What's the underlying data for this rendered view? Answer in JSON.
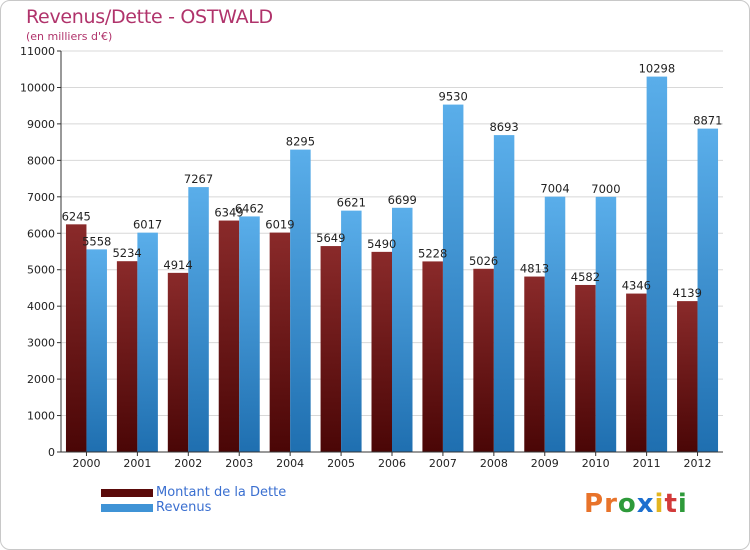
{
  "header": {
    "title": "Revenus/Dette - OSTWALD",
    "subtitle": "(en milliers d'€)"
  },
  "legend": {
    "debt_label": "Montant de la Dette",
    "revenue_label": "Revenus"
  },
  "logo": {
    "text": "Proxiti",
    "letters": [
      "P",
      "r",
      "o",
      "x",
      "i",
      "t",
      "i"
    ],
    "letter_colors": [
      "#e8732a",
      "#e8732a",
      "#2e9a3a",
      "#1c6fcf",
      "#e3b520",
      "#d23a3a",
      "#2e9a3a"
    ]
  },
  "colors": {
    "debt": "#7a1a1a",
    "revenue": "#3f93d6"
  },
  "chart_data": {
    "type": "bar",
    "title": "Revenus/Dette - OSTWALD",
    "subtitle": "(en milliers d'€)",
    "categories": [
      "2000",
      "2001",
      "2002",
      "2003",
      "2004",
      "2005",
      "2006",
      "2007",
      "2008",
      "2009",
      "2010",
      "2011",
      "2012"
    ],
    "series": [
      {
        "name": "Montant de la Dette",
        "values": [
          6245,
          5234,
          4914,
          6349,
          6019,
          5649,
          5490,
          5228,
          5026,
          4813,
          4582,
          4346,
          4139
        ]
      },
      {
        "name": "Revenus",
        "values": [
          5558,
          6017,
          7267,
          6462,
          8295,
          6621,
          6699,
          9530,
          8693,
          7004,
          7000,
          10298,
          8871
        ]
      }
    ],
    "ylim": [
      0,
      11000
    ],
    "yticks": [
      "0",
      "1000",
      "2000",
      "3000",
      "4000",
      "5000",
      "6000",
      "7000",
      "8000",
      "9000",
      "10000",
      "11000"
    ],
    "grid": true,
    "legend_position": "bottom-left"
  }
}
